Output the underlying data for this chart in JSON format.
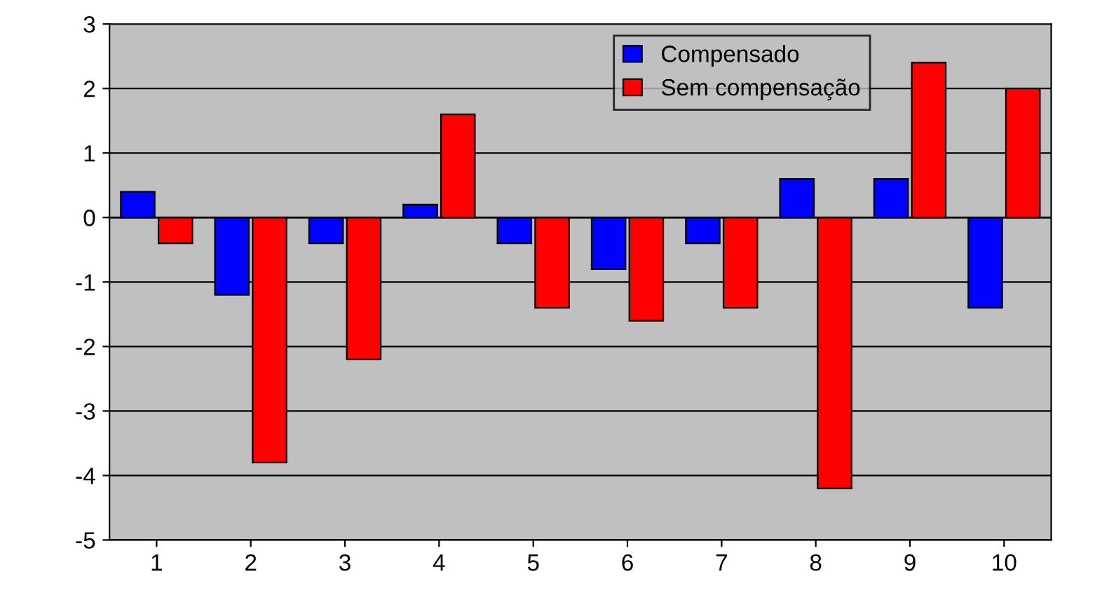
{
  "chart_data": {
    "type": "bar",
    "categories": [
      "1",
      "2",
      "3",
      "4",
      "5",
      "6",
      "7",
      "8",
      "9",
      "10"
    ],
    "series": [
      {
        "name": "Compensado",
        "color": "#0000ff",
        "values": [
          0.4,
          -1.2,
          -0.4,
          0.2,
          -0.4,
          -0.8,
          -0.4,
          0.6,
          0.6,
          -1.4
        ]
      },
      {
        "name": "Sem compensação",
        "color": "#ff0000",
        "values": [
          -0.4,
          -3.8,
          -2.2,
          1.6,
          -1.4,
          -1.6,
          -1.4,
          -4.2,
          2.4,
          2.0
        ]
      }
    ],
    "ylim": [
      -5,
      3
    ],
    "yticks": [
      -5,
      -4,
      -3,
      -2,
      -1,
      0,
      1,
      2,
      3
    ],
    "grid": "y",
    "legend": "top right"
  }
}
